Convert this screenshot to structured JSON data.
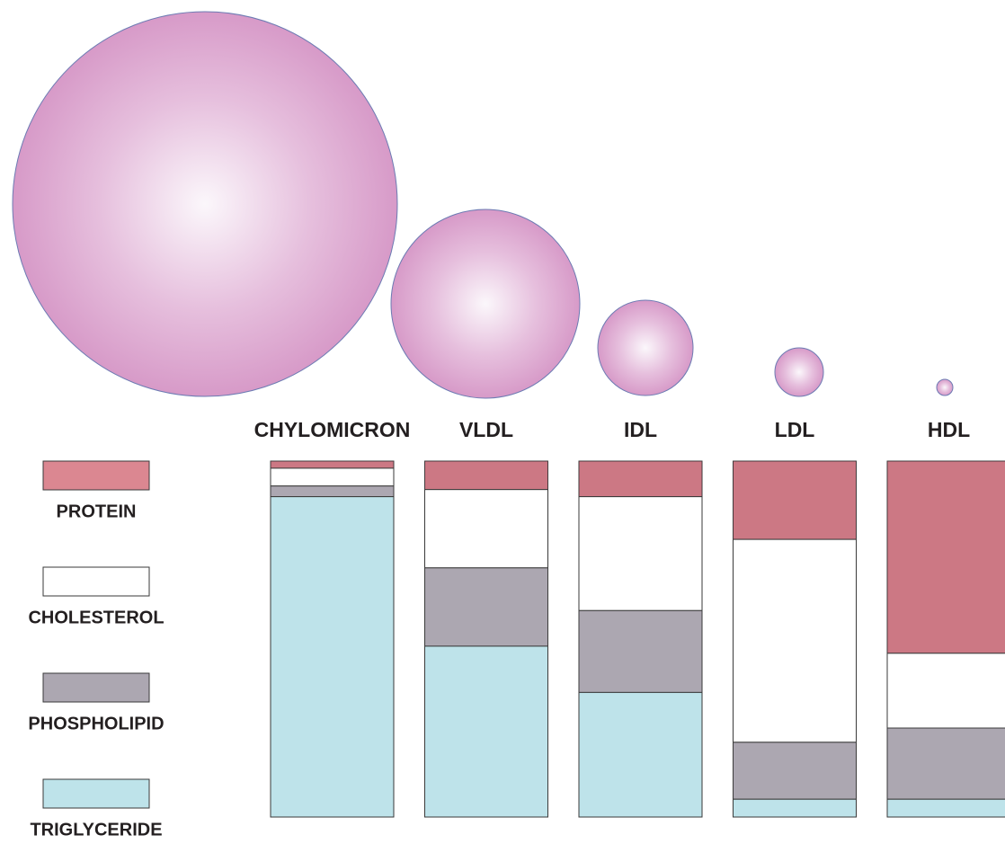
{
  "chart_data": {
    "type": "stacked-bar",
    "categories": [
      "CHYLOMICRON",
      "VLDL",
      "IDL",
      "LDL",
      "HDL"
    ],
    "series": [
      {
        "name": "PROTEIN",
        "color": "#db8791",
        "values": [
          2,
          8,
          10,
          22,
          54
        ]
      },
      {
        "name": "CHOLESTEROL",
        "color": "#ffffff",
        "values": [
          5,
          22,
          32,
          57,
          21
        ]
      },
      {
        "name": "PHOSPHOLIPID",
        "color": "#aca7b1",
        "values": [
          3,
          22,
          23,
          16,
          20
        ]
      },
      {
        "name": "TRIGLYCERIDE",
        "color": "#bee3ea",
        "values": [
          90,
          48,
          35,
          5,
          5
        ]
      }
    ]
  }
}
